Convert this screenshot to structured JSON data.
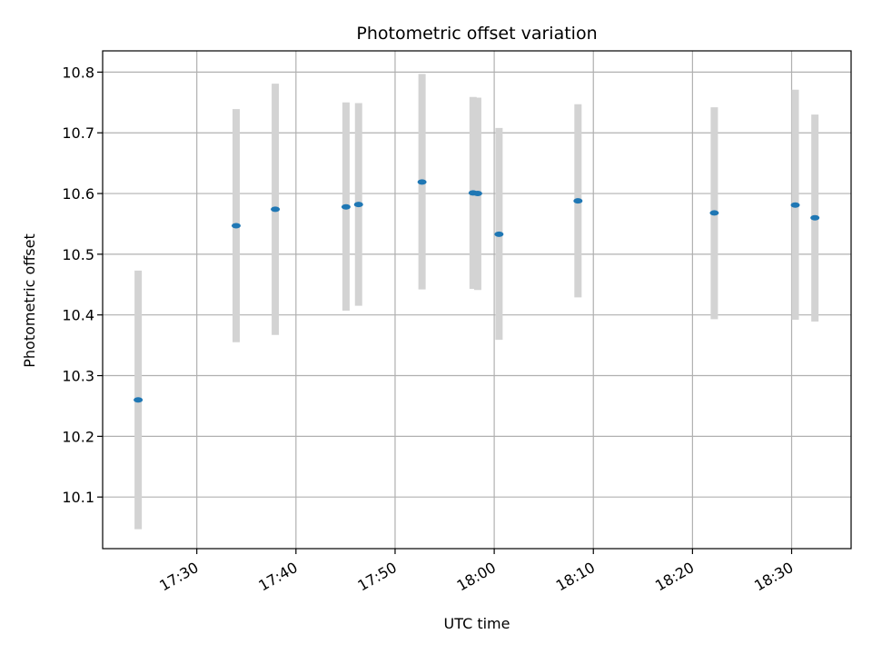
{
  "chart_data": {
    "type": "scatter",
    "title": "Photometric offset variation",
    "xlabel": "UTC time",
    "ylabel": "Photometric offset",
    "x_axis_kind": "time",
    "x_ticks": [
      "17:30",
      "17:40",
      "17:50",
      "18:00",
      "18:10",
      "18:20",
      "18:30"
    ],
    "y_ticks": [
      10.1,
      10.2,
      10.3,
      10.4,
      10.5,
      10.6,
      10.7,
      10.8
    ],
    "xlim": [
      "17:20:30",
      "18:36:00"
    ],
    "ylim": [
      10.015,
      10.835
    ],
    "grid": true,
    "colors": {
      "point": "#1f77b4",
      "errorbar": "#d3d3d3"
    },
    "series": [
      {
        "points": [
          {
            "x": "17:24:05",
            "y": 10.26,
            "y_low": 10.047,
            "y_high": 10.473
          },
          {
            "x": "17:33:58",
            "y": 10.547,
            "y_low": 10.355,
            "y_high": 10.739
          },
          {
            "x": "17:37:55",
            "y": 10.574,
            "y_low": 10.367,
            "y_high": 10.781
          },
          {
            "x": "17:45:03",
            "y": 10.578,
            "y_low": 10.407,
            "y_high": 10.75
          },
          {
            "x": "17:46:19",
            "y": 10.582,
            "y_low": 10.415,
            "y_high": 10.749
          },
          {
            "x": "17:52:43",
            "y": 10.619,
            "y_low": 10.442,
            "y_high": 10.797
          },
          {
            "x": "17:57:52",
            "y": 10.601,
            "y_low": 10.443,
            "y_high": 10.759
          },
          {
            "x": "17:58:20",
            "y": 10.6,
            "y_low": 10.441,
            "y_high": 10.758
          },
          {
            "x": "18:00:29",
            "y": 10.533,
            "y_low": 10.359,
            "y_high": 10.708
          },
          {
            "x": "18:08:27",
            "y": 10.588,
            "y_low": 10.429,
            "y_high": 10.747
          },
          {
            "x": "18:22:12",
            "y": 10.568,
            "y_low": 10.393,
            "y_high": 10.742
          },
          {
            "x": "18:30:22",
            "y": 10.581,
            "y_low": 10.392,
            "y_high": 10.771
          },
          {
            "x": "18:32:21",
            "y": 10.56,
            "y_low": 10.389,
            "y_high": 10.73
          }
        ]
      }
    ]
  }
}
